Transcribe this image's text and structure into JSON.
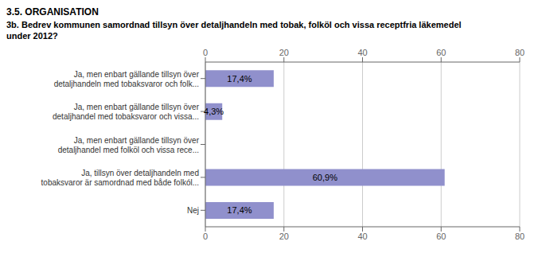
{
  "chart_data": {
    "type": "bar",
    "orientation": "horizontal",
    "title": "3.5. ORGANISATION",
    "subtitle": "3b. Bedrev kommunen samordnad tillsyn över detaljhandeln med tobak, folköl och vissa receptfria läkemedel\nunder 2012?",
    "categories": [
      "Ja, men enbart gällande tillsyn över\ndetaljhandeln med tobaksvaror och folk...",
      "Ja, men enbart gällande tillsyn över\ndetaljhandel med tobaksvaror och vissa...",
      "Ja, men enbart gällande tillsyn över\ndetaljhandel med folköl och vissa rece...",
      "Ja, tillsyn över detaljhandeln med\ntobaksvaror är samordnad med både folkól...",
      "Nej"
    ],
    "values": [
      17.4,
      4.3,
      0.0,
      60.9,
      17.4
    ],
    "value_labels": [
      "17,4%",
      "4,3%",
      null,
      "60,9%",
      "17,4%"
    ],
    "data_labels": true,
    "color": "#9090cc",
    "xlim": [
      0,
      80
    ],
    "xticks": [
      0,
      20,
      40,
      60,
      80
    ],
    "grid": true
  }
}
